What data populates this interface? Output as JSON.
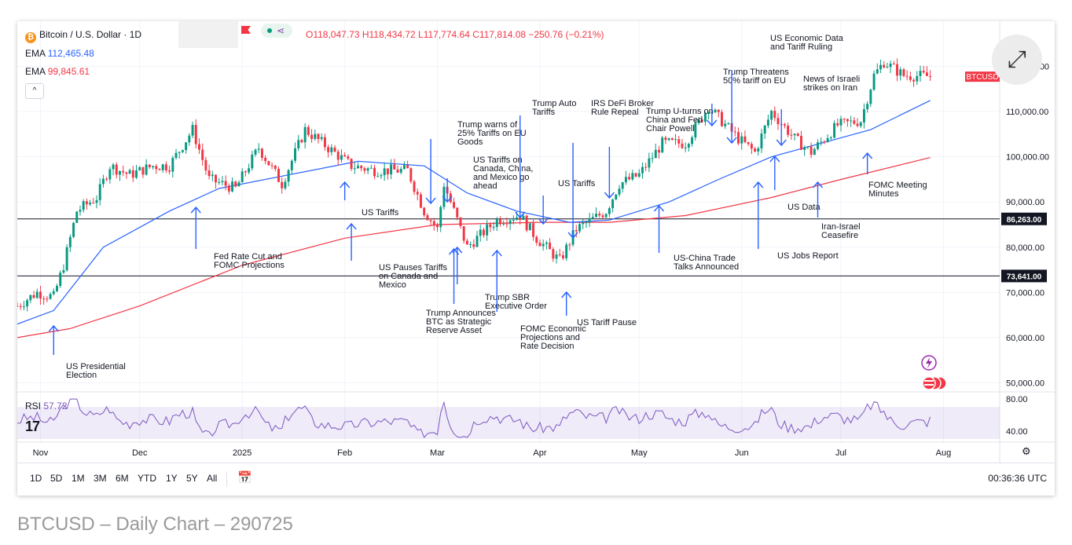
{
  "header": {
    "symbol": "Bitcoin / U.S. Dollar · 1D",
    "open": "O118,047.73",
    "high": "H118,434.72",
    "low": "L117,774.64",
    "close": "C117,814.08",
    "change": "−250.76 (−0.21%)"
  },
  "indicators": {
    "ema_label_1": "EMA",
    "ema_value_1": "112,465.48",
    "ema_label_2": "EMA",
    "ema_value_2": "99,845.61",
    "rsi_label": "RSI",
    "rsi_value": "57.72"
  },
  "toolbar": {
    "ranges": [
      "1D",
      "5D",
      "1M",
      "3M",
      "6M",
      "YTD",
      "1Y",
      "5Y",
      "All"
    ],
    "clock": "00:36:36 UTC"
  },
  "caption": "BTCUSD – Daily Chart – 290725",
  "colors": {
    "up": "#089981",
    "down": "#f23645",
    "ema_fast": "#2962ff",
    "ema_slow": "#f23645",
    "annotation": "#2962ff",
    "rsi": "#7e57c2"
  },
  "chart_data": {
    "type": "candlestick",
    "series_label": "BTCUSD",
    "last_price": 117814.08,
    "yticks": [
      50000,
      60000,
      70000,
      80000,
      90000,
      100000,
      110000,
      120000
    ],
    "ytick_labels": [
      "50,000.00",
      "60,000.00",
      "70,000.00",
      "80,000.00",
      "90,000.00",
      "100,000.00",
      "110,000.00",
      "120,000.00"
    ],
    "ylim": [
      48000,
      130000
    ],
    "xticks": [
      "Nov",
      "Dec",
      "2025",
      "Feb",
      "Mar",
      "Apr",
      "May",
      "Jun",
      "Jul",
      "Aug"
    ],
    "close_path": [
      [
        "2024-10-25",
        67000
      ],
      [
        "2024-10-31",
        70000
      ],
      [
        "2024-11-05",
        69000
      ],
      [
        "2024-11-08",
        76000
      ],
      [
        "2024-11-12",
        88000
      ],
      [
        "2024-11-18",
        91000
      ],
      [
        "2024-11-22",
        98000
      ],
      [
        "2024-11-28",
        96000
      ],
      [
        "2024-12-05",
        98000
      ],
      [
        "2024-12-10",
        98000
      ],
      [
        "2024-12-17",
        106000
      ],
      [
        "2024-12-22",
        95000
      ],
      [
        "2024-12-30",
        93000
      ],
      [
        "2025-01-06",
        102000
      ],
      [
        "2025-01-13",
        94000
      ],
      [
        "2025-01-20",
        106000
      ],
      [
        "2025-01-27",
        102000
      ],
      [
        "2025-02-03",
        98000
      ],
      [
        "2025-02-10",
        97000
      ],
      [
        "2025-02-20",
        97000
      ],
      [
        "2025-02-25",
        88000
      ],
      [
        "2025-03-01",
        84000
      ],
      [
        "2025-03-03",
        94000
      ],
      [
        "2025-03-10",
        80000
      ],
      [
        "2025-03-19",
        86000
      ],
      [
        "2025-03-26",
        87000
      ],
      [
        "2025-03-31",
        82000
      ],
      [
        "2025-04-07",
        77000
      ],
      [
        "2025-04-12",
        84000
      ],
      [
        "2025-04-21",
        88000
      ],
      [
        "2025-04-25",
        94000
      ],
      [
        "2025-05-01",
        96000
      ],
      [
        "2025-05-08",
        103000
      ],
      [
        "2025-05-15",
        103000
      ],
      [
        "2025-05-22",
        111000
      ],
      [
        "2025-05-31",
        104000
      ],
      [
        "2025-06-05",
        101000
      ],
      [
        "2025-06-10",
        110000
      ],
      [
        "2025-06-17",
        104000
      ],
      [
        "2025-06-22",
        101000
      ],
      [
        "2025-06-30",
        107000
      ],
      [
        "2025-07-07",
        108000
      ],
      [
        "2025-07-11",
        118000
      ],
      [
        "2025-07-14",
        121000
      ],
      [
        "2025-07-20",
        118000
      ],
      [
        "2025-07-28",
        117814
      ]
    ],
    "ema_fast_path": [
      [
        "2024-10-25",
        63000
      ],
      [
        "2024-11-05",
        66000
      ],
      [
        "2024-11-20",
        80000
      ],
      [
        "2024-12-10",
        88000
      ],
      [
        "2024-12-25",
        93000
      ],
      [
        "2025-01-15",
        96000
      ],
      [
        "2025-02-05",
        99000
      ],
      [
        "2025-02-25",
        98000
      ],
      [
        "2025-03-10",
        92000
      ],
      [
        "2025-03-25",
        88000
      ],
      [
        "2025-04-10",
        85500
      ],
      [
        "2025-04-22",
        86000
      ],
      [
        "2025-05-10",
        90000
      ],
      [
        "2025-05-25",
        95000
      ],
      [
        "2025-06-10",
        100000
      ],
      [
        "2025-06-25",
        103000
      ],
      [
        "2025-07-10",
        106000
      ],
      [
        "2025-07-28",
        112465
      ]
    ],
    "ema_slow_path": [
      [
        "2024-10-25",
        60000
      ],
      [
        "2024-11-10",
        62000
      ],
      [
        "2024-12-01",
        67000
      ],
      [
        "2025-01-01",
        76000
      ],
      [
        "2025-02-01",
        82000
      ],
      [
        "2025-03-01",
        85000
      ],
      [
        "2025-04-01",
        85500
      ],
      [
        "2025-04-22",
        85500
      ],
      [
        "2025-05-15",
        87000
      ],
      [
        "2025-06-10",
        91000
      ],
      [
        "2025-07-01",
        95000
      ],
      [
        "2025-07-28",
        99845
      ]
    ],
    "horizontal_levels": [
      {
        "price": 86263,
        "label": "86,263.00"
      },
      {
        "price": 73641,
        "label": "73,641.00"
      }
    ],
    "annotations": [
      {
        "text": "US Presidential Election",
        "date": "2024-11-05",
        "arrow": "up",
        "price": 69000
      },
      {
        "text": "Fed Rate Cut and FOMC Projections",
        "date": "2024-12-18",
        "arrow": "up",
        "price": 92000
      },
      {
        "text": "US Tariffs",
        "date": "2025-02-01",
        "arrow": "up",
        "price": 99000
      },
      {
        "text": "US Pauses Tariffs on Canada and Mexico",
        "date": "2025-02-03",
        "arrow": "up",
        "price": 90000
      },
      {
        "text": "Trump warns of 25% Tariffs on EU Goods",
        "date": "2025-02-27",
        "arrow": "down",
        "price": 94000
      },
      {
        "text": "US Tariffs on Canada, China, and Mexico go ahead",
        "date": "2025-03-04",
        "arrow": "down",
        "price": 95000
      },
      {
        "text": "Trump Announces BTC as Strategic Reserve Asset",
        "date": "2025-03-06",
        "arrow": "up",
        "price": 84000
      },
      {
        "text": "Trump SBR Executive Order",
        "date": "2025-03-07",
        "arrow": "up",
        "price": 83000
      },
      {
        "text": "FOMC Economic Projections and Rate Decision",
        "date": "2025-03-19",
        "arrow": "up",
        "price": 83000
      },
      {
        "text": "Trump Auto Tariffs",
        "date": "2025-03-26",
        "arrow": "down",
        "price": 88000
      },
      {
        "text": "US Tariffs",
        "date": "2025-04-02",
        "arrow": "down",
        "price": 87000
      },
      {
        "text": "IRS DeFi Broker Rule Repeal",
        "date": "2025-04-11",
        "arrow": "down",
        "price": 85500
      },
      {
        "text": "US Tariff Pause",
        "date": "2025-04-09",
        "arrow": "up",
        "price": 77000
      },
      {
        "text": "Trump U-turns on China and Fed Chair Powell",
        "date": "2025-04-22",
        "arrow": "down",
        "price": 94000
      },
      {
        "text": "US-China Trade Talks Announced",
        "date": "2025-05-07",
        "arrow": "up",
        "price": 94000
      },
      {
        "text": "Trump Threatens 50% tariff on EU",
        "date": "2025-05-23",
        "arrow": "down",
        "price": 112000
      },
      {
        "text": "US Economic Data and Tariff Ruling",
        "date": "2025-05-29",
        "arrow": "down",
        "price": 108000
      },
      {
        "text": "US Jobs Report",
        "date": "2025-06-06",
        "arrow": "up",
        "price": 100500
      },
      {
        "text": "US Data",
        "date": "2025-06-11",
        "arrow": "up",
        "price": 104000
      },
      {
        "text": "News of Israeli strikes on Iran",
        "date": "2025-06-13",
        "arrow": "down",
        "price": 108000
      },
      {
        "text": "Iran-Israel Ceasefire",
        "date": "2025-06-24",
        "arrow": "up",
        "price": 100000
      },
      {
        "text": "FOMC Meeting Minutes",
        "date": "2025-07-09",
        "arrow": "up",
        "price": 107000
      }
    ],
    "rsi": {
      "yticks": [
        40,
        80
      ],
      "ytick_labels": [
        "40.00",
        "80.00"
      ],
      "band": [
        30,
        70
      ],
      "last": 57.72
    }
  }
}
